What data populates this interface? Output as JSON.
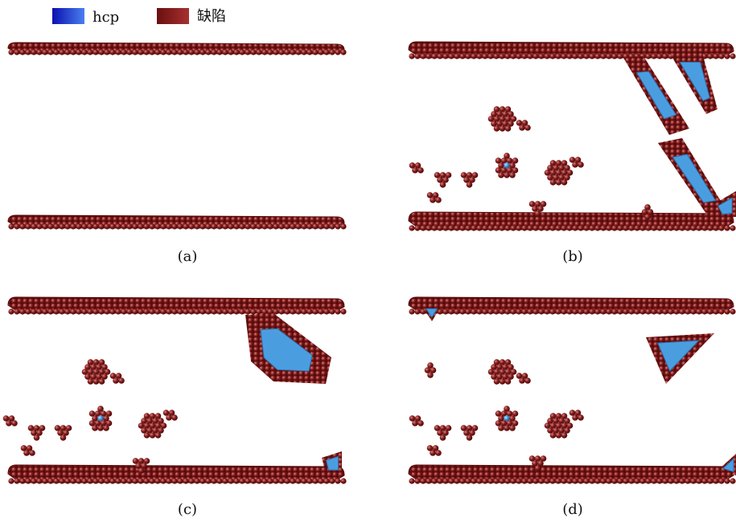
{
  "legend": {
    "items": [
      {
        "label": "hcp",
        "color": "#1f3fd0"
      },
      {
        "label": "缺陷",
        "color": "#8b1a1a"
      }
    ]
  },
  "panels": [
    {
      "label": "(a)"
    },
    {
      "label": "(b)"
    },
    {
      "label": "(c)"
    },
    {
      "label": "(d)"
    }
  ]
}
